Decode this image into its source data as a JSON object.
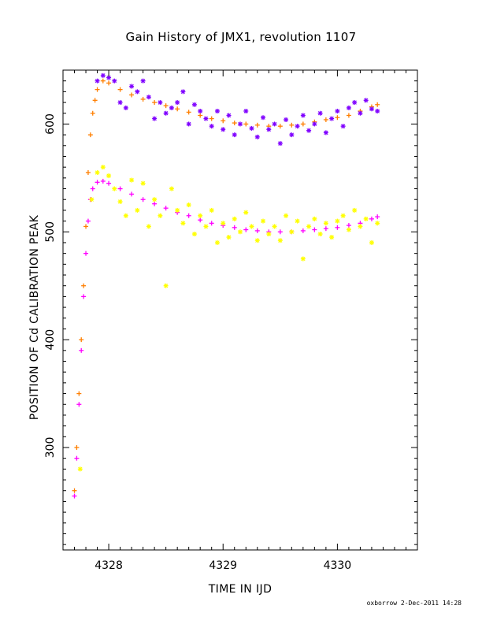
{
  "chart_data": {
    "type": "scatter",
    "title": "Gain History of JMX1, revolution 1107",
    "xlabel": "TIME IN IJD",
    "ylabel": "POSITION OF Cd CALIBRATION PEAK",
    "xlim": [
      4327.6,
      4330.7
    ],
    "ylim": [
      205,
      650
    ],
    "x_ticks": [
      4328,
      4329,
      4330
    ],
    "y_ticks": [
      300,
      400,
      500,
      600
    ],
    "grid": false,
    "series": [
      {
        "marker": "cross",
        "color": "#FF7F00",
        "points": [
          [
            4327.7,
            260
          ],
          [
            4327.72,
            300
          ],
          [
            4327.74,
            350
          ],
          [
            4327.76,
            400
          ],
          [
            4327.78,
            450
          ],
          [
            4327.8,
            505
          ],
          [
            4327.82,
            555
          ],
          [
            4327.84,
            590
          ],
          [
            4327.86,
            610
          ],
          [
            4327.88,
            622
          ],
          [
            4327.9,
            632
          ],
          [
            4327.95,
            640
          ],
          [
            4328.0,
            638
          ],
          [
            4328.1,
            632
          ],
          [
            4328.2,
            627
          ],
          [
            4328.3,
            623
          ],
          [
            4328.4,
            620
          ],
          [
            4328.5,
            617
          ],
          [
            4328.6,
            614
          ],
          [
            4328.7,
            611
          ],
          [
            4328.8,
            608
          ],
          [
            4328.9,
            605
          ],
          [
            4329.0,
            603
          ],
          [
            4329.1,
            601
          ],
          [
            4329.2,
            600
          ],
          [
            4329.3,
            599
          ],
          [
            4329.4,
            598
          ],
          [
            4329.5,
            598
          ],
          [
            4329.6,
            599
          ],
          [
            4329.7,
            600
          ],
          [
            4329.8,
            602
          ],
          [
            4329.9,
            604
          ],
          [
            4330.0,
            606
          ],
          [
            4330.1,
            608
          ],
          [
            4330.2,
            612
          ],
          [
            4330.3,
            616
          ],
          [
            4330.35,
            618
          ]
        ]
      },
      {
        "marker": "cross",
        "color": "#FF00FF",
        "points": [
          [
            4327.7,
            255
          ],
          [
            4327.72,
            290
          ],
          [
            4327.74,
            340
          ],
          [
            4327.76,
            390
          ],
          [
            4327.78,
            440
          ],
          [
            4327.8,
            480
          ],
          [
            4327.82,
            510
          ],
          [
            4327.84,
            530
          ],
          [
            4327.86,
            540
          ],
          [
            4327.9,
            546
          ],
          [
            4327.95,
            547
          ],
          [
            4328.0,
            545
          ],
          [
            4328.1,
            540
          ],
          [
            4328.2,
            535
          ],
          [
            4328.3,
            530
          ],
          [
            4328.4,
            526
          ],
          [
            4328.5,
            522
          ],
          [
            4328.6,
            518
          ],
          [
            4328.7,
            515
          ],
          [
            4328.8,
            511
          ],
          [
            4328.9,
            508
          ],
          [
            4329.0,
            506
          ],
          [
            4329.1,
            504
          ],
          [
            4329.2,
            502
          ],
          [
            4329.3,
            501
          ],
          [
            4329.4,
            500
          ],
          [
            4329.5,
            500
          ],
          [
            4329.6,
            500
          ],
          [
            4329.7,
            501
          ],
          [
            4329.8,
            502
          ],
          [
            4329.9,
            503
          ],
          [
            4330.0,
            504
          ],
          [
            4330.1,
            506
          ],
          [
            4330.2,
            508
          ],
          [
            4330.3,
            512
          ],
          [
            4330.35,
            514
          ]
        ]
      },
      {
        "marker": "star",
        "color": "#7F00FF",
        "points": [
          [
            4327.9,
            640
          ],
          [
            4327.95,
            645
          ],
          [
            4328.0,
            643
          ],
          [
            4328.05,
            640
          ],
          [
            4328.1,
            620
          ],
          [
            4328.15,
            615
          ],
          [
            4328.2,
            635
          ],
          [
            4328.25,
            630
          ],
          [
            4328.3,
            640
          ],
          [
            4328.35,
            625
          ],
          [
            4328.4,
            605
          ],
          [
            4328.45,
            620
          ],
          [
            4328.5,
            610
          ],
          [
            4328.55,
            615
          ],
          [
            4328.6,
            620
          ],
          [
            4328.65,
            630
          ],
          [
            4328.7,
            600
          ],
          [
            4328.75,
            618
          ],
          [
            4328.8,
            612
          ],
          [
            4328.85,
            605
          ],
          [
            4328.9,
            598
          ],
          [
            4328.95,
            612
          ],
          [
            4329.0,
            595
          ],
          [
            4329.05,
            608
          ],
          [
            4329.1,
            590
          ],
          [
            4329.15,
            600
          ],
          [
            4329.2,
            612
          ],
          [
            4329.25,
            596
          ],
          [
            4329.3,
            588
          ],
          [
            4329.35,
            606
          ],
          [
            4329.4,
            595
          ],
          [
            4329.45,
            600
          ],
          [
            4329.5,
            582
          ],
          [
            4329.55,
            604
          ],
          [
            4329.6,
            590
          ],
          [
            4329.65,
            598
          ],
          [
            4329.7,
            608
          ],
          [
            4329.75,
            594
          ],
          [
            4329.8,
            600
          ],
          [
            4329.85,
            610
          ],
          [
            4329.9,
            592
          ],
          [
            4329.95,
            605
          ],
          [
            4330.0,
            612
          ],
          [
            4330.05,
            598
          ],
          [
            4330.1,
            615
          ],
          [
            4330.15,
            620
          ],
          [
            4330.2,
            610
          ],
          [
            4330.25,
            622
          ],
          [
            4330.3,
            614
          ],
          [
            4330.35,
            612
          ]
        ]
      },
      {
        "marker": "star",
        "color": "#FFFF00",
        "points": [
          [
            4327.75,
            280
          ],
          [
            4327.85,
            530
          ],
          [
            4327.9,
            555
          ],
          [
            4327.95,
            560
          ],
          [
            4328.0,
            552
          ],
          [
            4328.05,
            540
          ],
          [
            4328.1,
            528
          ],
          [
            4328.15,
            515
          ],
          [
            4328.2,
            548
          ],
          [
            4328.25,
            520
          ],
          [
            4328.3,
            545
          ],
          [
            4328.35,
            505
          ],
          [
            4328.4,
            530
          ],
          [
            4328.45,
            515
          ],
          [
            4328.5,
            450
          ],
          [
            4328.55,
            540
          ],
          [
            4328.6,
            520
          ],
          [
            4328.65,
            508
          ],
          [
            4328.7,
            525
          ],
          [
            4328.75,
            498
          ],
          [
            4328.8,
            515
          ],
          [
            4328.85,
            505
          ],
          [
            4328.9,
            520
          ],
          [
            4328.95,
            490
          ],
          [
            4329.0,
            508
          ],
          [
            4329.05,
            495
          ],
          [
            4329.1,
            512
          ],
          [
            4329.15,
            500
          ],
          [
            4329.2,
            518
          ],
          [
            4329.25,
            505
          ],
          [
            4329.3,
            492
          ],
          [
            4329.35,
            510
          ],
          [
            4329.4,
            498
          ],
          [
            4329.45,
            505
          ],
          [
            4329.5,
            492
          ],
          [
            4329.55,
            515
          ],
          [
            4329.6,
            500
          ],
          [
            4329.65,
            510
          ],
          [
            4329.7,
            475
          ],
          [
            4329.75,
            505
          ],
          [
            4329.8,
            512
          ],
          [
            4329.85,
            498
          ],
          [
            4329.9,
            508
          ],
          [
            4329.95,
            495
          ],
          [
            4330.0,
            510
          ],
          [
            4330.05,
            515
          ],
          [
            4330.1,
            502
          ],
          [
            4330.15,
            520
          ],
          [
            4330.2,
            505
          ],
          [
            4330.25,
            512
          ],
          [
            4330.3,
            490
          ],
          [
            4330.35,
            508
          ]
        ]
      }
    ]
  },
  "footer": "oxborrow  2-Dec-2011 14:28"
}
